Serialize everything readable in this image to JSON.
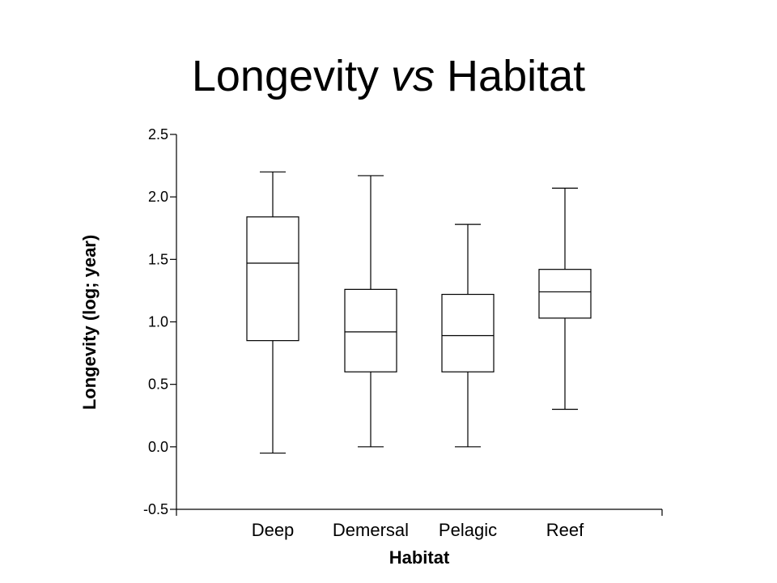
{
  "slide": {
    "title_part1": "Longevity ",
    "title_part2": "vs",
    "title_part3": " Habitat"
  },
  "chart_data": {
    "type": "box",
    "title": "Longevity vs Habitat",
    "xlabel": "Habitat",
    "ylabel": "Longevity (log; year)",
    "ylim": [
      -0.5,
      2.5
    ],
    "yticks": [
      -0.5,
      0.0,
      0.5,
      1.0,
      1.5,
      2.0,
      2.5
    ],
    "ytick_labels": [
      "-0.5",
      "0.0",
      "0.5",
      "1.0",
      "1.5",
      "2.0",
      "2.5"
    ],
    "categories": [
      "Deep",
      "Demersal",
      "Pelagic",
      "Reef"
    ],
    "boxes": [
      {
        "category": "Deep",
        "min": -0.05,
        "q1": 0.85,
        "median": 1.47,
        "q3": 1.84,
        "max": 2.2
      },
      {
        "category": "Demersal",
        "min": 0.0,
        "q1": 0.6,
        "median": 0.92,
        "q3": 1.26,
        "max": 2.17
      },
      {
        "category": "Pelagic",
        "min": 0.0,
        "q1": 0.6,
        "median": 0.89,
        "q3": 1.22,
        "max": 1.78
      },
      {
        "category": "Reef",
        "min": 0.3,
        "q1": 1.03,
        "median": 1.24,
        "q3": 1.42,
        "max": 2.07
      }
    ],
    "grid": false,
    "legend": "none"
  }
}
